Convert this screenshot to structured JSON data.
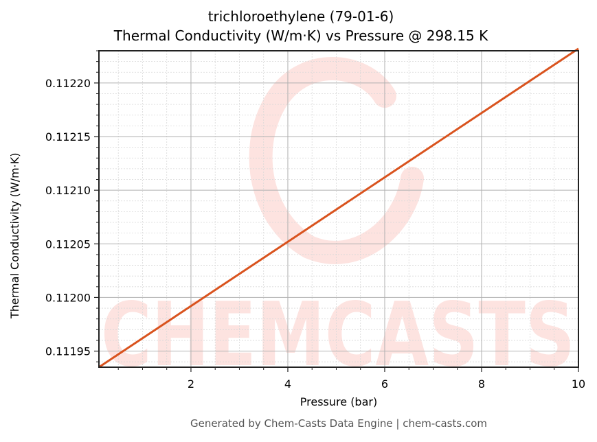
{
  "chart_data": {
    "type": "line",
    "title": "trichloroethylene (79-01-6)",
    "subtitle": "Thermal Conductivity (W/m·K) vs Pressure @ 298.15 K",
    "xlabel": "Pressure (bar)",
    "ylabel": "Thermal Conductivity (W/m·K)",
    "xlim": [
      0.1,
      10
    ],
    "ylim": [
      0.111935,
      0.11223
    ],
    "x_ticks": [
      2,
      4,
      6,
      8,
      10
    ],
    "x_tick_labels": [
      "2",
      "4",
      "6",
      "8",
      "10"
    ],
    "y_ticks": [
      0.11195,
      0.112,
      0.11205,
      0.1121,
      0.11215,
      0.1122
    ],
    "y_tick_labels": [
      "0.11195",
      "0.11200",
      "0.11205",
      "0.11210",
      "0.11215",
      "0.11220"
    ],
    "grid": true,
    "minor_grid": true,
    "legend": null,
    "series": [
      {
        "name": "trichloroethylene",
        "color": "#d9531e",
        "x": [
          0.1,
          2,
          4,
          6,
          8,
          10
        ],
        "y": [
          0.111935,
          0.111992,
          0.112052,
          0.112112,
          0.112172,
          0.112232
        ]
      }
    ]
  },
  "header": {
    "title": "trichloroethylene (79-01-6)",
    "subtitle": "Thermal Conductivity (W/m·K) vs Pressure @ 298.15 K"
  },
  "axes": {
    "xlabel": "Pressure (bar)",
    "ylabel": "Thermal Conductivity (W/m·K)"
  },
  "watermark": {
    "text": "CHEMCASTS",
    "color": "#fde3e0"
  },
  "footer": {
    "text": "Generated by Chem-Casts Data Engine | chem-casts.com"
  }
}
